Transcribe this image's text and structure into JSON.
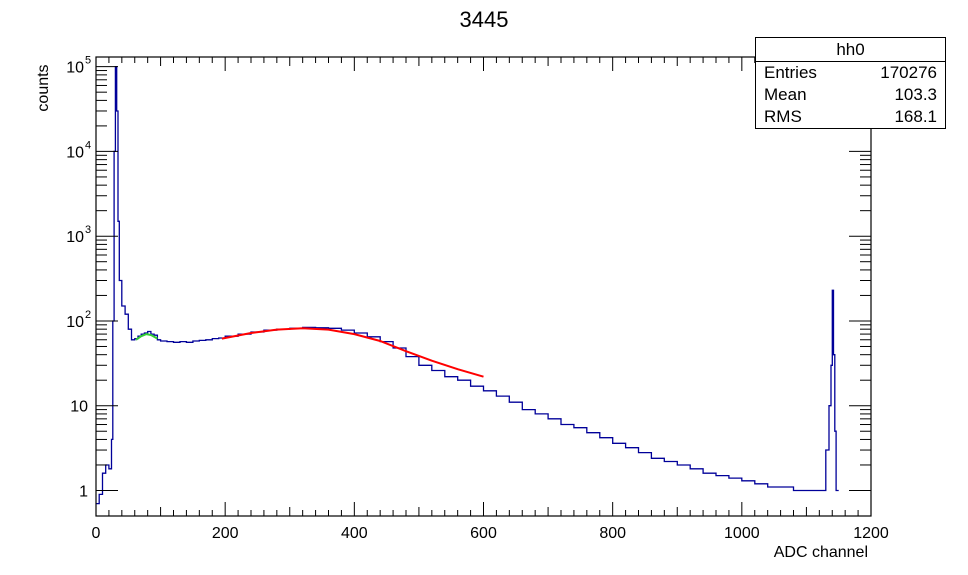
{
  "chart_data": {
    "type": "histogram",
    "title": "3445",
    "xlabel": "ADC channel",
    "ylabel": "counts",
    "xlim": [
      0,
      1200
    ],
    "ylim": [
      0.5,
      130000
    ],
    "yscale": "log",
    "grid": false,
    "x_ticks": [
      {
        "value": 0,
        "label": "0"
      },
      {
        "value": 200,
        "label": "200"
      },
      {
        "value": 400,
        "label": "400"
      },
      {
        "value": 600,
        "label": "600"
      },
      {
        "value": 800,
        "label": "800"
      },
      {
        "value": 1000,
        "label": "1000"
      },
      {
        "value": 1200,
        "label": "1200"
      }
    ],
    "y_ticks": [
      {
        "value": 1,
        "base": "1",
        "exp": ""
      },
      {
        "value": 10,
        "base": "10",
        "exp": ""
      },
      {
        "value": 100,
        "base": "10",
        "exp": "2"
      },
      {
        "value": 1000,
        "base": "10",
        "exp": "3"
      },
      {
        "value": 10000,
        "base": "10",
        "exp": "4"
      },
      {
        "value": 100000,
        "base": "10",
        "exp": "5"
      }
    ],
    "histogram": {
      "name": "hh0",
      "color": "#000099",
      "points": [
        [
          0,
          0.7
        ],
        [
          5,
          0.9
        ],
        [
          10,
          1.6
        ],
        [
          15,
          2
        ],
        [
          20,
          1.8
        ],
        [
          24,
          4
        ],
        [
          26,
          100
        ],
        [
          28,
          10000
        ],
        [
          30,
          100000
        ],
        [
          32,
          30000
        ],
        [
          34,
          1500
        ],
        [
          36,
          300
        ],
        [
          40,
          150
        ],
        [
          45,
          120
        ],
        [
          50,
          80
        ],
        [
          55,
          60
        ],
        [
          60,
          62
        ],
        [
          65,
          66
        ],
        [
          70,
          70
        ],
        [
          75,
          72
        ],
        [
          80,
          75
        ],
        [
          85,
          70
        ],
        [
          90,
          68
        ],
        [
          95,
          60
        ],
        [
          100,
          58
        ],
        [
          110,
          57
        ],
        [
          120,
          56
        ],
        [
          130,
          57
        ],
        [
          140,
          56
        ],
        [
          150,
          58
        ],
        [
          160,
          59
        ],
        [
          170,
          60
        ],
        [
          180,
          62
        ],
        [
          190,
          63
        ],
        [
          200,
          66
        ],
        [
          220,
          70
        ],
        [
          240,
          74
        ],
        [
          260,
          78
        ],
        [
          280,
          80
        ],
        [
          300,
          82
        ],
        [
          320,
          84
        ],
        [
          340,
          83
        ],
        [
          360,
          82
        ],
        [
          380,
          78
        ],
        [
          400,
          72
        ],
        [
          420,
          65
        ],
        [
          440,
          57
        ],
        [
          460,
          48
        ],
        [
          480,
          38
        ],
        [
          500,
          30
        ],
        [
          520,
          26
        ],
        [
          540,
          22
        ],
        [
          560,
          20
        ],
        [
          580,
          17
        ],
        [
          600,
          15
        ],
        [
          620,
          13
        ],
        [
          640,
          11
        ],
        [
          660,
          9
        ],
        [
          680,
          8
        ],
        [
          700,
          7
        ],
        [
          720,
          6
        ],
        [
          740,
          5.5
        ],
        [
          760,
          4.8
        ],
        [
          780,
          4.2
        ],
        [
          800,
          3.6
        ],
        [
          820,
          3.2
        ],
        [
          840,
          2.8
        ],
        [
          860,
          2.4
        ],
        [
          880,
          2.2
        ],
        [
          900,
          2
        ],
        [
          920,
          1.8
        ],
        [
          940,
          1.6
        ],
        [
          960,
          1.5
        ],
        [
          980,
          1.4
        ],
        [
          1000,
          1.3
        ],
        [
          1020,
          1.2
        ],
        [
          1040,
          1.1
        ],
        [
          1060,
          1.1
        ],
        [
          1080,
          1.0
        ],
        [
          1100,
          1.0
        ],
        [
          1120,
          1.0
        ],
        [
          1130,
          3
        ],
        [
          1135,
          10
        ],
        [
          1138,
          30
        ],
        [
          1140,
          230
        ],
        [
          1142,
          40
        ],
        [
          1144,
          5
        ],
        [
          1146,
          1
        ]
      ]
    },
    "fits": [
      {
        "color": "#33cc33",
        "x_range": [
          62,
          95
        ],
        "points": [
          [
            62,
            60
          ],
          [
            70,
            66
          ],
          [
            78,
            70
          ],
          [
            86,
            68
          ],
          [
            95,
            62
          ]
        ]
      },
      {
        "color": "#ff0000",
        "x_range": [
          195,
          600
        ],
        "points": [
          [
            195,
            62
          ],
          [
            240,
            72
          ],
          [
            280,
            79
          ],
          [
            320,
            82
          ],
          [
            360,
            79
          ],
          [
            400,
            70
          ],
          [
            440,
            58
          ],
          [
            480,
            44
          ],
          [
            520,
            34
          ],
          [
            560,
            27
          ],
          [
            600,
            22
          ]
        ]
      }
    ],
    "stats": {
      "name": "hh0",
      "rows": [
        {
          "label": "Entries",
          "value": "170276"
        },
        {
          "label": "Mean",
          "value": "103.3"
        },
        {
          "label": "RMS",
          "value": "168.1"
        }
      ]
    }
  }
}
